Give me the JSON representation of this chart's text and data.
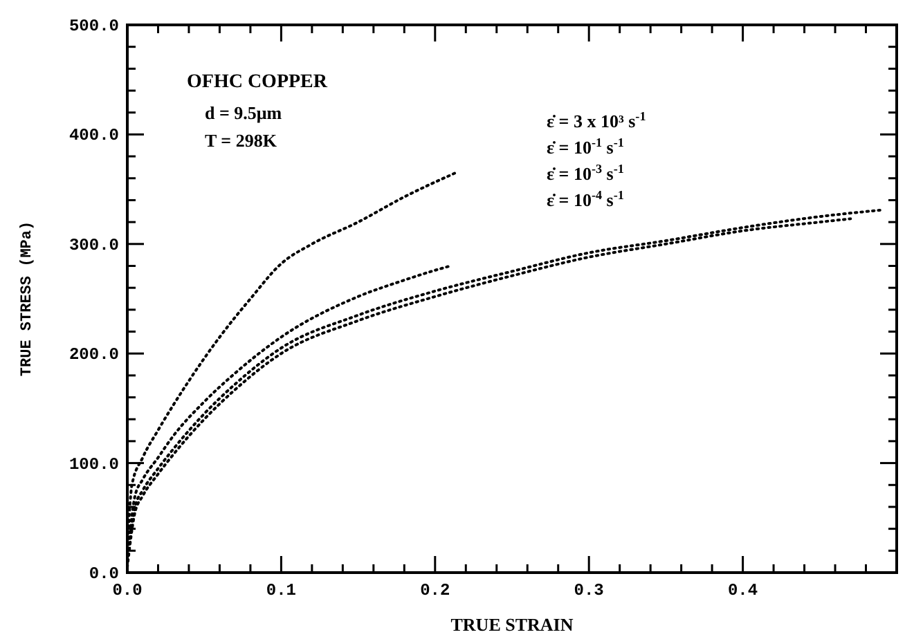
{
  "chart_data": {
    "type": "line",
    "xlabel": "TRUE STRAIN",
    "ylabel": "TRUE STRESS (MPa)",
    "xlim": [
      0,
      0.5
    ],
    "ylim": [
      0,
      500
    ],
    "xticks": [
      {
        "value": 0,
        "label": "0.0"
      },
      {
        "value": 0.02,
        "label": null
      },
      {
        "value": 0.04,
        "label": null
      },
      {
        "value": 0.06,
        "label": null
      },
      {
        "value": 0.08,
        "label": null
      },
      {
        "value": 0.1,
        "label": "0.1"
      },
      {
        "value": 0.12,
        "label": null
      },
      {
        "value": 0.14,
        "label": null
      },
      {
        "value": 0.16,
        "label": null
      },
      {
        "value": 0.18,
        "label": null
      },
      {
        "value": 0.2,
        "label": "0.2"
      },
      {
        "value": 0.22,
        "label": null
      },
      {
        "value": 0.24,
        "label": null
      },
      {
        "value": 0.26,
        "label": null
      },
      {
        "value": 0.28,
        "label": null
      },
      {
        "value": 0.3,
        "label": "0.3"
      },
      {
        "value": 0.32,
        "label": null
      },
      {
        "value": 0.34,
        "label": null
      },
      {
        "value": 0.36,
        "label": null
      },
      {
        "value": 0.38,
        "label": null
      },
      {
        "value": 0.4,
        "label": "0.4"
      },
      {
        "value": 0.42,
        "label": null
      },
      {
        "value": 0.44,
        "label": null
      },
      {
        "value": 0.46,
        "label": null
      },
      {
        "value": 0.48,
        "label": null
      }
    ],
    "yticks": [
      {
        "value": 0,
        "label": "0.0"
      },
      {
        "value": 20,
        "label": null
      },
      {
        "value": 40,
        "label": null
      },
      {
        "value": 60,
        "label": null
      },
      {
        "value": 80,
        "label": null
      },
      {
        "value": 100,
        "label": "100.0"
      },
      {
        "value": 120,
        "label": null
      },
      {
        "value": 140,
        "label": null
      },
      {
        "value": 160,
        "label": null
      },
      {
        "value": 180,
        "label": null
      },
      {
        "value": 200,
        "label": "200.0"
      },
      {
        "value": 220,
        "label": null
      },
      {
        "value": 240,
        "label": null
      },
      {
        "value": 260,
        "label": null
      },
      {
        "value": 280,
        "label": null
      },
      {
        "value": 300,
        "label": "300.0"
      },
      {
        "value": 320,
        "label": null
      },
      {
        "value": 340,
        "label": null
      },
      {
        "value": 360,
        "label": null
      },
      {
        "value": 380,
        "label": null
      },
      {
        "value": 400,
        "label": "400.0"
      },
      {
        "value": 420,
        "label": null
      },
      {
        "value": 440,
        "label": null
      },
      {
        "value": 460,
        "label": null
      },
      {
        "value": 480,
        "label": null
      },
      {
        "value": 500,
        "label": "500.0"
      }
    ],
    "line_style": "dotted",
    "marker": "none",
    "grid": false,
    "annotations": [
      "OFHC COPPER",
      "d = 9.5μm",
      "T = 298K",
      "ε̇ = 3 x 10³ s$^{-1}$",
      "ε̇ = 10$^{-1}$ s$^{-1}$",
      "ε̇ = 10$^{-3}$ s$^{-1}$",
      "ε̇ = 10$^{-4}$ s$^{-1}$"
    ],
    "series": [
      {
        "color": "#000000",
        "x": [
          0,
          0.003,
          0.01,
          0.02,
          0.04,
          0.06,
          0.08,
          0.1,
          0.12,
          0.15,
          0.18,
          0.215
        ],
        "values": [
          20,
          80,
          105,
          130,
          175,
          215,
          250,
          282,
          300,
          320,
          343,
          366
        ]
      },
      {
        "color": "#000000",
        "x": [
          0,
          0.005,
          0.01,
          0.02,
          0.03,
          0.05,
          0.07,
          0.1,
          0.15,
          0.18,
          0.2,
          0.21
        ],
        "values": [
          10,
          70,
          85,
          105,
          125,
          156,
          182,
          215,
          252,
          267,
          276,
          280
        ]
      },
      {
        "color": "#000000",
        "x": [
          0,
          0.005,
          0.01,
          0.02,
          0.03,
          0.05,
          0.07,
          0.1,
          0.15,
          0.2,
          0.25,
          0.3,
          0.35,
          0.4,
          0.45,
          0.49
        ],
        "values": [
          10,
          60,
          75,
          95,
          113,
          145,
          172,
          205,
          235,
          257,
          275,
          292,
          303,
          315,
          325,
          331
        ]
      },
      {
        "color": "#000000",
        "x": [
          0,
          0.005,
          0.01,
          0.02,
          0.03,
          0.05,
          0.07,
          0.1,
          0.15,
          0.2,
          0.25,
          0.3,
          0.35,
          0.4,
          0.45,
          0.47
        ],
        "values": [
          5,
          55,
          70,
          90,
          108,
          140,
          167,
          200,
          230,
          252,
          271,
          288,
          300,
          312,
          320,
          323
        ]
      }
    ]
  }
}
